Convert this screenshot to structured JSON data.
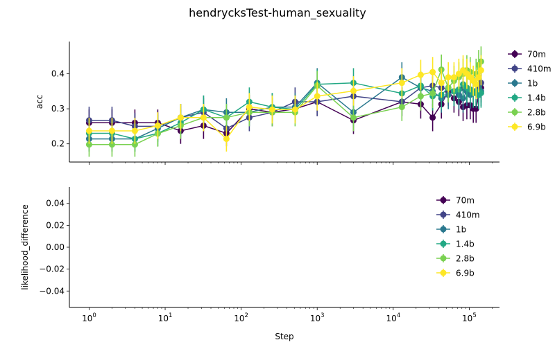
{
  "chart_data": [
    {
      "type": "line",
      "title": "hendrycksTest-human_sexuality",
      "xlabel": "",
      "ylabel": "acc",
      "xscale": "log",
      "xlim": [
        0.55,
        250000
      ],
      "ylim": [
        0.148,
        0.492
      ],
      "yticks": [
        "0.2",
        "0.3",
        "0.4"
      ],
      "ytick_values": [
        0.2,
        0.3,
        0.4
      ],
      "legend": "right-outside",
      "errorbars": true,
      "series": [
        {
          "name": "70m",
          "color": "#440154",
          "x": [
            1,
            2,
            4,
            8,
            16,
            32,
            64,
            128,
            256,
            512,
            1000,
            3000,
            13000,
            23000,
            33000,
            43000,
            53000,
            63000,
            73000,
            83000,
            93000,
            103000,
            113000,
            123000,
            133000,
            143000
          ],
          "y": [
            0.26,
            0.26,
            0.26,
            0.26,
            0.237,
            0.252,
            0.23,
            0.3,
            0.29,
            0.3,
            0.32,
            0.267,
            0.32,
            0.313,
            0.275,
            0.313,
            0.35,
            0.33,
            0.32,
            0.305,
            0.31,
            0.31,
            0.3,
            0.3,
            0.34,
            0.36
          ],
          "err": [
            0.038,
            0.038,
            0.038,
            0.038,
            0.037,
            0.038,
            0.037,
            0.04,
            0.04,
            0.04,
            0.041,
            0.039,
            0.041,
            0.041,
            0.039,
            0.041,
            0.042,
            0.041,
            0.041,
            0.04,
            0.04,
            0.04,
            0.04,
            0.04,
            0.042,
            0.042
          ]
        },
        {
          "name": "410m",
          "color": "#414487",
          "x": [
            1,
            2,
            4,
            8,
            16,
            32,
            64,
            128,
            256,
            512,
            1000,
            3000,
            13000,
            23000,
            33000,
            43000,
            53000,
            63000,
            73000,
            83000,
            93000,
            103000,
            113000,
            123000,
            133000,
            143000
          ],
          "y": [
            0.267,
            0.267,
            0.25,
            0.25,
            0.275,
            0.29,
            0.244,
            0.275,
            0.29,
            0.32,
            0.32,
            0.336,
            0.32,
            0.36,
            0.366,
            0.36,
            0.355,
            0.35,
            0.34,
            0.36,
            0.35,
            0.345,
            0.35,
            0.35,
            0.36,
            0.374
          ],
          "err": [
            0.039,
            0.039,
            0.038,
            0.038,
            0.039,
            0.04,
            0.038,
            0.039,
            0.04,
            0.041,
            0.041,
            0.041,
            0.041,
            0.042,
            0.042,
            0.042,
            0.042,
            0.042,
            0.042,
            0.042,
            0.042,
            0.042,
            0.042,
            0.042,
            0.042,
            0.042
          ]
        },
        {
          "name": "1b",
          "color": "#2a788e",
          "x": [
            1,
            2,
            4,
            8,
            16,
            32,
            64,
            128,
            256,
            512,
            1000,
            3000,
            13000,
            23000,
            33000,
            43000,
            53000,
            63000,
            73000,
            83000,
            93000,
            103000,
            113000,
            123000,
            133000,
            143000
          ],
          "y": [
            0.214,
            0.214,
            0.214,
            0.244,
            0.275,
            0.298,
            0.29,
            0.29,
            0.305,
            0.305,
            0.374,
            0.29,
            0.39,
            0.36,
            0.35,
            0.33,
            0.34,
            0.35,
            0.34,
            0.33,
            0.35,
            0.34,
            0.35,
            0.345,
            0.34,
            0.35
          ],
          "err": [
            0.036,
            0.036,
            0.036,
            0.038,
            0.039,
            0.04,
            0.04,
            0.04,
            0.04,
            0.04,
            0.042,
            0.04,
            0.043,
            0.042,
            0.042,
            0.041,
            0.041,
            0.042,
            0.041,
            0.041,
            0.042,
            0.041,
            0.042,
            0.042,
            0.041,
            0.042
          ]
        },
        {
          "name": "1.4b",
          "color": "#22a884",
          "x": [
            1,
            2,
            4,
            8,
            16,
            32,
            64,
            128,
            256,
            512,
            1000,
            3000,
            13000,
            23000,
            33000,
            43000,
            53000,
            63000,
            73000,
            83000,
            93000,
            103000,
            113000,
            123000,
            133000,
            143000
          ],
          "y": [
            0.23,
            0.23,
            0.214,
            0.23,
            0.26,
            0.298,
            0.275,
            0.32,
            0.305,
            0.298,
            0.37,
            0.374,
            0.344,
            0.366,
            0.336,
            0.34,
            0.36,
            0.35,
            0.355,
            0.37,
            0.36,
            0.355,
            0.345,
            0.35,
            0.34,
            0.345
          ],
          "err": [
            0.037,
            0.037,
            0.036,
            0.037,
            0.038,
            0.04,
            0.039,
            0.041,
            0.04,
            0.04,
            0.042,
            0.042,
            0.042,
            0.042,
            0.041,
            0.042,
            0.042,
            0.042,
            0.042,
            0.042,
            0.042,
            0.042,
            0.042,
            0.042,
            0.041,
            0.042
          ]
        },
        {
          "name": "2.8b",
          "color": "#7ad151",
          "x": [
            1,
            2,
            4,
            8,
            16,
            32,
            64,
            128,
            256,
            512,
            1000,
            3000,
            13000,
            23000,
            33000,
            43000,
            53000,
            63000,
            73000,
            83000,
            93000,
            103000,
            113000,
            123000,
            133000,
            143000
          ],
          "y": [
            0.198,
            0.198,
            0.198,
            0.229,
            0.252,
            0.275,
            0.275,
            0.29,
            0.29,
            0.29,
            0.366,
            0.275,
            0.305,
            0.336,
            0.344,
            0.412,
            0.36,
            0.38,
            0.39,
            0.4,
            0.41,
            0.405,
            0.38,
            0.4,
            0.425,
            0.435
          ],
          "err": [
            0.035,
            0.035,
            0.035,
            0.037,
            0.038,
            0.039,
            0.039,
            0.04,
            0.04,
            0.04,
            0.042,
            0.039,
            0.04,
            0.041,
            0.042,
            0.043,
            0.042,
            0.043,
            0.043,
            0.043,
            0.043,
            0.043,
            0.043,
            0.043,
            0.043,
            0.043
          ]
        },
        {
          "name": "6.9b",
          "color": "#fde725",
          "x": [
            1,
            2,
            4,
            8,
            16,
            32,
            64,
            128,
            256,
            512,
            1000,
            3000,
            13000,
            23000,
            33000,
            43000,
            53000,
            63000,
            73000,
            83000,
            93000,
            103000,
            113000,
            123000,
            133000,
            143000
          ],
          "y": [
            0.237,
            0.237,
            0.237,
            0.252,
            0.275,
            0.275,
            0.214,
            0.305,
            0.298,
            0.298,
            0.336,
            0.351,
            0.374,
            0.397,
            0.405,
            0.374,
            0.39,
            0.39,
            0.4,
            0.41,
            0.4,
            0.39,
            0.38,
            0.37,
            0.39,
            0.41
          ],
          "err": [
            0.037,
            0.037,
            0.037,
            0.038,
            0.039,
            0.039,
            0.036,
            0.04,
            0.04,
            0.04,
            0.041,
            0.042,
            0.042,
            0.043,
            0.043,
            0.042,
            0.043,
            0.043,
            0.043,
            0.043,
            0.043,
            0.043,
            0.043,
            0.042,
            0.043,
            0.043
          ]
        }
      ]
    },
    {
      "type": "line",
      "title": "",
      "xlabel": "Step",
      "ylabel": "likelihood_difference",
      "xscale": "log",
      "xlim": [
        0.55,
        250000
      ],
      "ylim": [
        -0.055,
        0.055
      ],
      "xticks": [
        1,
        10,
        100,
        1000,
        10000,
        100000
      ],
      "xtick_labels": [
        [
          "10",
          "0"
        ],
        [
          "10",
          "1"
        ],
        [
          "10",
          "2"
        ],
        [
          "10",
          "3"
        ],
        [
          "10",
          "4"
        ],
        [
          "10",
          "5"
        ]
      ],
      "yticks": [
        "0.04",
        "0.02",
        "0.00",
        "−0.02",
        "−0.04"
      ],
      "ytick_values": [
        0.04,
        0.02,
        0.0,
        -0.02,
        -0.04
      ],
      "legend": "upper-right",
      "series": [
        {
          "name": "70m",
          "color": "#440154",
          "x": [],
          "y": []
        },
        {
          "name": "410m",
          "color": "#414487",
          "x": [],
          "y": []
        },
        {
          "name": "1b",
          "color": "#2a788e",
          "x": [],
          "y": []
        },
        {
          "name": "1.4b",
          "color": "#22a884",
          "x": [],
          "y": []
        },
        {
          "name": "2.8b",
          "color": "#7ad151",
          "x": [],
          "y": []
        },
        {
          "name": "6.9b",
          "color": "#fde725",
          "x": [],
          "y": []
        }
      ]
    }
  ]
}
